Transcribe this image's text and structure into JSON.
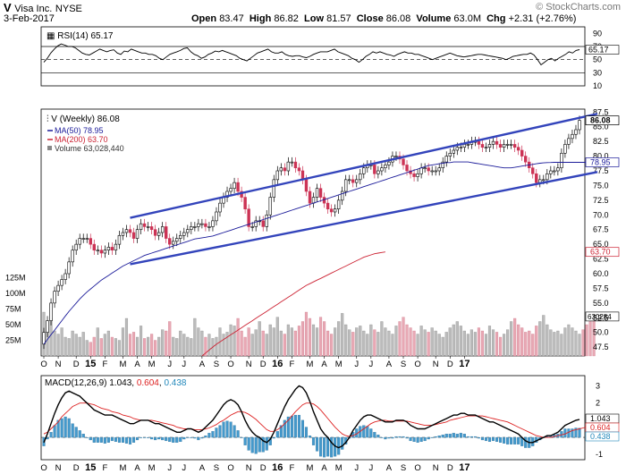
{
  "header": {
    "symbol": "V",
    "company": "Visa Inc.",
    "exchange": "NYSE",
    "copyright": "© StockCharts.com",
    "date": "3-Feb-2017",
    "open_label": "Open",
    "open": "83.47",
    "high_label": "High",
    "high": "86.82",
    "low_label": "Low",
    "low": "81.57",
    "close_label": "Close",
    "close": "86.08",
    "volume_label": "Volume",
    "volume": "63.0M",
    "chg_label": "Chg",
    "chg": "+2.31 (+2.76%)"
  },
  "colors": {
    "up": "#ffffff",
    "down": "#cc3355",
    "ma50": "#1a1a99",
    "ma200": "#cc2233",
    "channel": "#3344bb",
    "rsi": "#000000",
    "macd": "#000000",
    "signal": "#dd2222",
    "hist": "#4499cc",
    "vol_up": "#bbbbbb",
    "vol_down": "#e8a8b4"
  },
  "chart_data": [
    {
      "type": "line",
      "title": "RSI(14) 65.17",
      "label": "RSI(14)",
      "last": "65.17",
      "ylim": [
        10,
        100
      ],
      "ticks": [
        "90",
        "70",
        "50",
        "30",
        "10"
      ],
      "levels": [
        70,
        30
      ],
      "values": [
        46,
        52,
        60,
        66,
        71,
        74,
        72,
        70,
        70,
        68,
        64,
        60,
        58,
        57,
        60,
        63,
        66,
        64,
        62,
        64,
        65,
        60,
        58,
        63,
        62,
        66,
        64,
        62,
        60,
        60,
        58,
        58,
        56,
        52,
        50,
        54,
        58,
        60,
        62,
        64,
        67,
        68,
        62,
        58,
        56,
        52,
        54,
        58,
        60,
        63,
        62,
        64,
        62,
        60,
        58,
        56,
        52,
        50,
        48,
        52,
        56,
        60,
        62,
        64,
        66,
        62,
        60,
        60,
        62,
        58,
        56,
        55,
        56,
        56,
        54,
        53,
        55,
        58,
        60,
        62,
        62,
        62,
        64,
        66,
        62,
        60,
        58,
        56,
        52,
        50,
        46,
        50,
        55,
        58,
        62,
        60,
        62,
        60,
        58,
        57,
        55,
        58,
        60,
        62,
        60,
        60,
        58,
        58,
        56,
        54,
        52,
        50,
        52,
        54,
        56,
        58,
        60,
        58,
        56,
        55,
        54,
        55,
        56,
        57,
        58,
        58,
        57,
        56,
        55,
        54,
        53,
        52,
        50,
        52,
        55,
        56,
        57,
        58,
        58,
        60,
        57,
        50,
        42,
        46,
        50,
        52,
        48,
        52,
        55,
        58,
        62,
        60,
        64,
        65.17
      ]
    },
    {
      "type": "candlestick",
      "title": "V (Weekly) 86.08",
      "series_label": "V (Weekly)",
      "last": "86.08",
      "ma50_label": "MA(50)",
      "ma50_last": "78.95",
      "ma200_label": "MA(200)",
      "ma200_last": "63.70",
      "volume_label": "Volume",
      "volume_last": "63,028,440",
      "y_ticks": [
        "87.5",
        "85.0",
        "82.5",
        "80.0",
        "77.5",
        "75.0",
        "72.5",
        "70.0",
        "67.5",
        "65.0",
        "62.5",
        "60.0",
        "57.5",
        "55.0",
        "52.5",
        "50.0",
        "47.5"
      ],
      "ylim": [
        46,
        88
      ],
      "closes": [
        50,
        52,
        55,
        57,
        58,
        59,
        60,
        62,
        64,
        65,
        66,
        66,
        66,
        65,
        64,
        64,
        63.5,
        64,
        64.5,
        64,
        65,
        66.5,
        67,
        67.5,
        67,
        66,
        67.5,
        68.5,
        68,
        68,
        67.5,
        66.5,
        67,
        68,
        66,
        65,
        65.5,
        66,
        66.5,
        67,
        67.5,
        68,
        68,
        68.5,
        68.5,
        68,
        68,
        69,
        70.5,
        72,
        73,
        74,
        74.5,
        75.5,
        74,
        73,
        71,
        68,
        68,
        69,
        69,
        68,
        70,
        73,
        76,
        77.5,
        78,
        77.5,
        79,
        79,
        78,
        77.5,
        76,
        74,
        72,
        73,
        74.5,
        73,
        72,
        71,
        70.5,
        71,
        72.5,
        74,
        76,
        76,
        75.5,
        76,
        77,
        78,
        78.5,
        78.5,
        77,
        77.5,
        78,
        78.5,
        79,
        80,
        80,
        79.5,
        78.5,
        77.5,
        77,
        76.5,
        77,
        78,
        78,
        77.5,
        77.5,
        77.5,
        78,
        79,
        80,
        80.5,
        81,
        81.5,
        81.5,
        82,
        82,
        82.5,
        82.5,
        82,
        81.5,
        81.5,
        82,
        82.5,
        82,
        81.5,
        82,
        82,
        82,
        81.5,
        81,
        80,
        79,
        78,
        77,
        75.5,
        76,
        76,
        77,
        77.5,
        77.5,
        78,
        80.5,
        82,
        83,
        83.7,
        84.5,
        86.08
      ],
      "ma50": [
        48,
        48.8,
        49.6,
        50.4,
        51.2,
        52,
        52.8,
        53.6,
        54.3,
        55,
        55.7,
        56.3,
        56.9,
        57.4,
        57.9,
        58.4,
        58.9,
        59.3,
        59.7,
        60.1,
        60.5,
        60.9,
        61.3,
        61.6,
        61.9,
        62.2,
        62.5,
        62.8,
        63.1,
        63.3,
        63.5,
        63.7,
        63.9,
        64.1,
        64.3,
        64.5,
        64.7,
        64.9,
        65.1,
        65.3,
        65.5,
        65.7,
        65.9,
        66,
        66.1,
        66.2,
        66.3,
        66.4,
        66.6,
        66.8,
        67,
        67.2,
        67.4,
        67.6,
        67.8,
        68,
        68.2,
        68.4,
        68.6,
        68.8,
        69,
        69.2,
        69.4,
        69.6,
        69.8,
        70,
        70.2,
        70.4,
        70.6,
        70.8,
        71,
        71.2,
        71.4,
        71.6,
        71.8,
        72,
        72.2,
        72.4,
        72.6,
        72.8,
        73,
        73.2,
        73.4,
        73.6,
        73.8,
        74,
        74.2,
        74.4,
        74.6,
        74.8,
        75,
        75.2,
        75.4,
        75.6,
        75.8,
        76,
        76.2,
        76.4,
        76.6,
        76.8,
        77,
        77.2,
        77.4,
        77.6,
        77.8,
        78,
        78.2,
        78.4,
        78.5,
        78.6,
        78.7,
        78.8,
        78.9,
        78.9,
        79,
        79,
        79,
        79,
        79,
        78.9,
        78.8,
        78.7,
        78.6,
        78.5,
        78.4,
        78.3,
        78.2,
        78.1,
        78,
        78,
        78,
        78.1,
        78.2,
        78.3,
        78.4,
        78.5,
        78.6,
        78.7,
        78.8,
        78.85,
        78.9,
        78.92,
        78.94,
        78.95,
        78.95,
        78.95,
        78.95,
        78.95,
        78.95,
        78.95,
        78.95,
        78.95
      ],
      "ma200_start_index": 44,
      "ma200": [
        46,
        46.5,
        47,
        47.5,
        48,
        48.4,
        48.8,
        49.2,
        49.6,
        50,
        50.4,
        50.8,
        51.2,
        51.6,
        52,
        52.4,
        52.8,
        53.2,
        53.6,
        54,
        54.4,
        54.8,
        55.2,
        55.6,
        56,
        56.4,
        56.8,
        57.2,
        57.6,
        58,
        58.3,
        58.6,
        58.9,
        59.2,
        59.5,
        59.8,
        60.1,
        60.4,
        60.7,
        61,
        61.3,
        61.6,
        61.9,
        62.2,
        62.5,
        62.8,
        63,
        63.2,
        63.4,
        63.5,
        63.6,
        63.7
      ],
      "channel_upper": [
        [
          24,
          69.5
        ],
        [
          154,
          87.2
        ]
      ],
      "channel_lower": [
        [
          24,
          61.6
        ],
        [
          154,
          77.3
        ]
      ],
      "volume_ticks": [
        "125M",
        "100M",
        "75M",
        "50M",
        "25M"
      ],
      "volume_ylim": [
        0,
        140
      ],
      "volume_millions": [
        70,
        45,
        60,
        40,
        35,
        45,
        30,
        28,
        40,
        35,
        30,
        38,
        25,
        22,
        30,
        45,
        28,
        35,
        40,
        30,
        28,
        25,
        45,
        60,
        35,
        38,
        30,
        48,
        28,
        30,
        35,
        25,
        30,
        42,
        40,
        55,
        30,
        28,
        40,
        35,
        30,
        28,
        60,
        45,
        40,
        30,
        35,
        28,
        30,
        45,
        35,
        38,
        50,
        48,
        60,
        40,
        30,
        45,
        35,
        42,
        55,
        40,
        35,
        50,
        45,
        62,
        40,
        35,
        50,
        45,
        40,
        48,
        55,
        70,
        60,
        50,
        45,
        62,
        55,
        40,
        35,
        45,
        55,
        68,
        50,
        42,
        38,
        45,
        48,
        40,
        35,
        50,
        42,
        38,
        55,
        45,
        40,
        35,
        48,
        55,
        62,
        50,
        45,
        40,
        35,
        48,
        42,
        38,
        45,
        40,
        35,
        30,
        38,
        45,
        50,
        55,
        48,
        40,
        35,
        42,
        38,
        45,
        40,
        35,
        48,
        42,
        38,
        30,
        35,
        42,
        55,
        60,
        50,
        45,
        38,
        40,
        35,
        48,
        55,
        65,
        50,
        42,
        38,
        40,
        35,
        45,
        50,
        45,
        40,
        35,
        42,
        50,
        55,
        63
      ]
    },
    {
      "type": "line",
      "title": "MACD(12,26,9) 1.043, 0.604, 0.438",
      "label": "MACD(12,26,9)",
      "macd_last": "1.043",
      "signal_last": "0.604",
      "hist_last": "0.438",
      "ylim": [
        -1.3,
        3.6
      ],
      "ticks": [
        "3",
        "2",
        "1",
        "0",
        "-1"
      ],
      "macd": [
        -0.3,
        0.2,
        0.8,
        1.4,
        1.9,
        2.3,
        2.6,
        2.7,
        2.6,
        2.5,
        2.4,
        2.2,
        2,
        1.8,
        1.6,
        1.5,
        1.4,
        1.3,
        1.3,
        1.3,
        1.2,
        1.1,
        1,
        0.9,
        0.8,
        0.8,
        0.9,
        1,
        1,
        1,
        0.9,
        0.8,
        0.8,
        0.7,
        0.6,
        0.5,
        0.4,
        0.3,
        0.3,
        0.4,
        0.5,
        0.5,
        0.4,
        0.3,
        0.4,
        0.6,
        0.8,
        1,
        1.3,
        1.6,
        1.9,
        2.1,
        2.2,
        2.1,
        1.9,
        1.5,
        1,
        0.6,
        0.3,
        0.1,
        0,
        -0.2,
        -0.3,
        -0.1,
        0.3,
        0.8,
        1.3,
        1.8,
        2.2,
        2.5,
        2.8,
        3,
        2.9,
        2.6,
        2.1,
        1.5,
        1,
        0.5,
        0.2,
        0,
        -0.3,
        -0.5,
        -0.6,
        -0.5,
        -0.3,
        0,
        0.4,
        0.7,
        1,
        1.2,
        1.3,
        1.3,
        1.2,
        1.1,
        1,
        0.9,
        0.9,
        0.9,
        1,
        1,
        1,
        0.9,
        0.7,
        0.6,
        0.5,
        0.5,
        0.5,
        0.6,
        0.7,
        0.8,
        0.9,
        1,
        1.1,
        1.2,
        1.3,
        1.3,
        1.4,
        1.4,
        1.3,
        1.3,
        1.3,
        1.2,
        1.1,
        1,
        0.9,
        0.9,
        0.8,
        0.7,
        0.6,
        0.5,
        0.4,
        0.3,
        0.2,
        0,
        -0.2,
        -0.3,
        -0.3,
        -0.2,
        -0.1,
        0,
        0.1,
        0.1,
        0.2,
        0.3,
        0.5,
        0.7,
        0.8,
        0.9,
        1,
        1.043
      ],
      "signal": [
        0.2,
        0.3,
        0.5,
        0.7,
        0.9,
        1.2,
        1.4,
        1.6,
        1.8,
        1.9,
        2,
        2,
        2,
        1.95,
        1.9,
        1.8,
        1.7,
        1.65,
        1.6,
        1.5,
        1.45,
        1.4,
        1.3,
        1.25,
        1.2,
        1.1,
        1.05,
        1,
        1,
        1,
        1,
        0.95,
        0.9,
        0.85,
        0.8,
        0.75,
        0.7,
        0.6,
        0.55,
        0.5,
        0.5,
        0.5,
        0.45,
        0.45,
        0.45,
        0.5,
        0.55,
        0.65,
        0.75,
        0.9,
        1,
        1.15,
        1.3,
        1.4,
        1.5,
        1.5,
        1.45,
        1.35,
        1.2,
        1.05,
        0.85,
        0.65,
        0.45,
        0.35,
        0.35,
        0.45,
        0.6,
        0.8,
        1,
        1.25,
        1.5,
        1.7,
        1.9,
        2,
        2,
        1.95,
        1.8,
        1.6,
        1.35,
        1.1,
        0.85,
        0.6,
        0.4,
        0.2,
        0.1,
        0.05,
        0.1,
        0.2,
        0.35,
        0.5,
        0.65,
        0.8,
        0.9,
        0.95,
        1,
        1,
        0.95,
        0.95,
        0.95,
        0.95,
        0.95,
        0.95,
        0.9,
        0.85,
        0.8,
        0.75,
        0.7,
        0.7,
        0.7,
        0.75,
        0.8,
        0.85,
        0.9,
        1,
        1.05,
        1.1,
        1.15,
        1.2,
        1.25,
        1.25,
        1.25,
        1.25,
        1.25,
        1.2,
        1.15,
        1.1,
        1.05,
        1,
        0.95,
        0.9,
        0.8,
        0.7,
        0.6,
        0.5,
        0.4,
        0.3,
        0.2,
        0.1,
        0.05,
        0,
        0,
        0,
        0.05,
        0.1,
        0.15,
        0.2,
        0.3,
        0.4,
        0.45,
        0.5,
        0.55,
        0.604
      ]
    }
  ],
  "x_axis": {
    "labels": [
      "O",
      "N",
      "D",
      "15",
      "F",
      "M",
      "A",
      "M",
      "J",
      "J",
      "A",
      "S",
      "O",
      "N",
      "D",
      "16",
      "F",
      "M",
      "A",
      "M",
      "J",
      "J",
      "A",
      "S",
      "O",
      "N",
      "D",
      "17"
    ],
    "bold": [
      "15",
      "16",
      "17"
    ],
    "label_index": [
      0,
      4,
      9,
      13,
      17,
      22,
      26,
      30,
      35,
      39,
      44,
      48,
      52,
      57,
      61,
      65,
      69,
      74,
      78,
      82,
      87,
      91,
      96,
      100,
      104,
      109,
      113,
      117
    ]
  }
}
